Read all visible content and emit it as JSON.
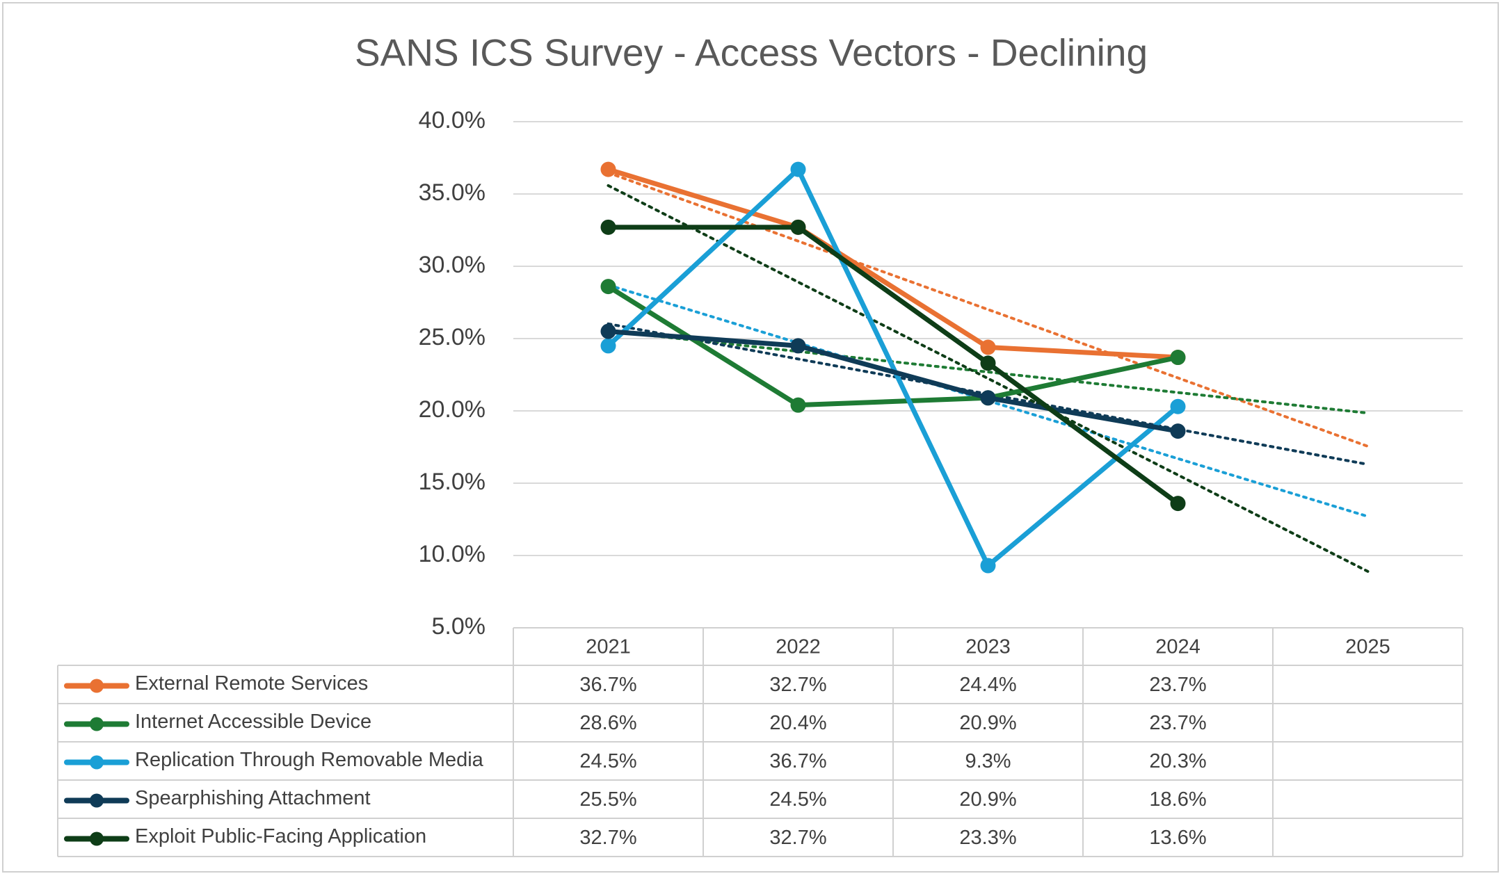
{
  "chart_data": {
    "type": "line",
    "title": "SANS ICS Survey - Access Vectors - Declining",
    "categories": [
      "2021",
      "2022",
      "2023",
      "2024",
      "2025"
    ],
    "ylim": [
      5,
      40
    ],
    "yticks": [
      {
        "value": 5,
        "label": "5.0%"
      },
      {
        "value": 10,
        "label": "10.0%"
      },
      {
        "value": 15,
        "label": "15.0%"
      },
      {
        "value": 20,
        "label": "20.0%"
      },
      {
        "value": 25,
        "label": "25.0%"
      },
      {
        "value": 30,
        "label": "30.0%"
      },
      {
        "value": 35,
        "label": "35.0%"
      },
      {
        "value": 40,
        "label": "40.0%"
      }
    ],
    "grid": true,
    "trendline": "linear",
    "series": [
      {
        "name": "External Remote Services",
        "color": "#e97132",
        "values": [
          36.7,
          32.7,
          24.4,
          23.7,
          null
        ],
        "value_labels": [
          "36.7%",
          "32.7%",
          "24.4%",
          "23.7%",
          null
        ]
      },
      {
        "name": "Internet Accessible Device",
        "color": "#1e7b34",
        "values": [
          28.6,
          20.4,
          20.9,
          23.7,
          null
        ],
        "value_labels": [
          "28.6%",
          "20.4%",
          "20.9%",
          "23.7%",
          null
        ]
      },
      {
        "name": "Replication Through Removable Media",
        "color": "#1a9fd6",
        "values": [
          24.5,
          36.7,
          9.3,
          20.3,
          null
        ],
        "value_labels": [
          "24.5%",
          "36.7%",
          "9.3%",
          "20.3%",
          null
        ]
      },
      {
        "name": "Spearphishing Attachment",
        "color": "#0f3b57",
        "values": [
          25.5,
          24.5,
          20.9,
          18.6,
          null
        ],
        "value_labels": [
          "25.5%",
          "24.5%",
          "20.9%",
          "18.6%",
          null
        ]
      },
      {
        "name": "Exploit Public-Facing Application",
        "color": "#0e3d17",
        "values": [
          32.7,
          32.7,
          23.3,
          13.6,
          null
        ],
        "value_labels": [
          "32.7%",
          "32.7%",
          "23.3%",
          "13.6%",
          null
        ]
      }
    ]
  }
}
